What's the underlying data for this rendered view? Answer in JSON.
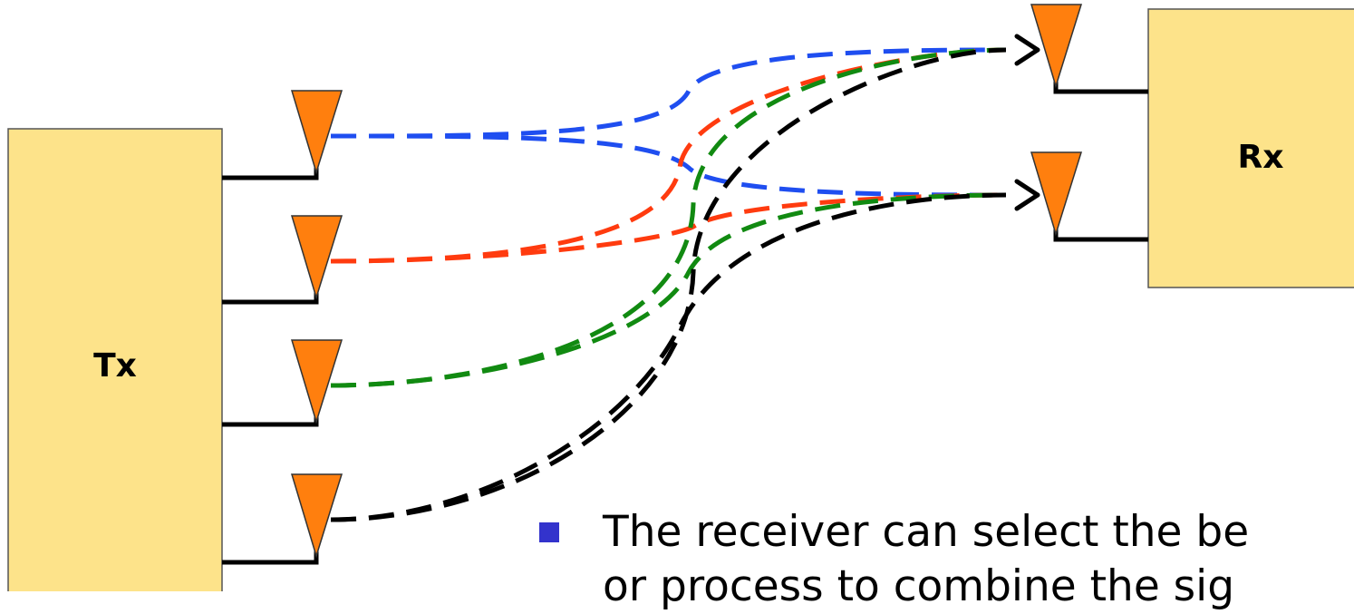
{
  "transmitter": {
    "label": "Tx"
  },
  "receiver": {
    "label": "Rx"
  },
  "colors": {
    "box_fill": "#fde38a",
    "antenna_fill": "#ff7f0e",
    "paths": [
      "#1f4ef0",
      "#ff3b0f",
      "#118a11",
      "#000000"
    ],
    "bullet": "#3333cc"
  },
  "bullet": {
    "line1": "The receiver can select the be",
    "line2": "or process to combine the sig"
  }
}
